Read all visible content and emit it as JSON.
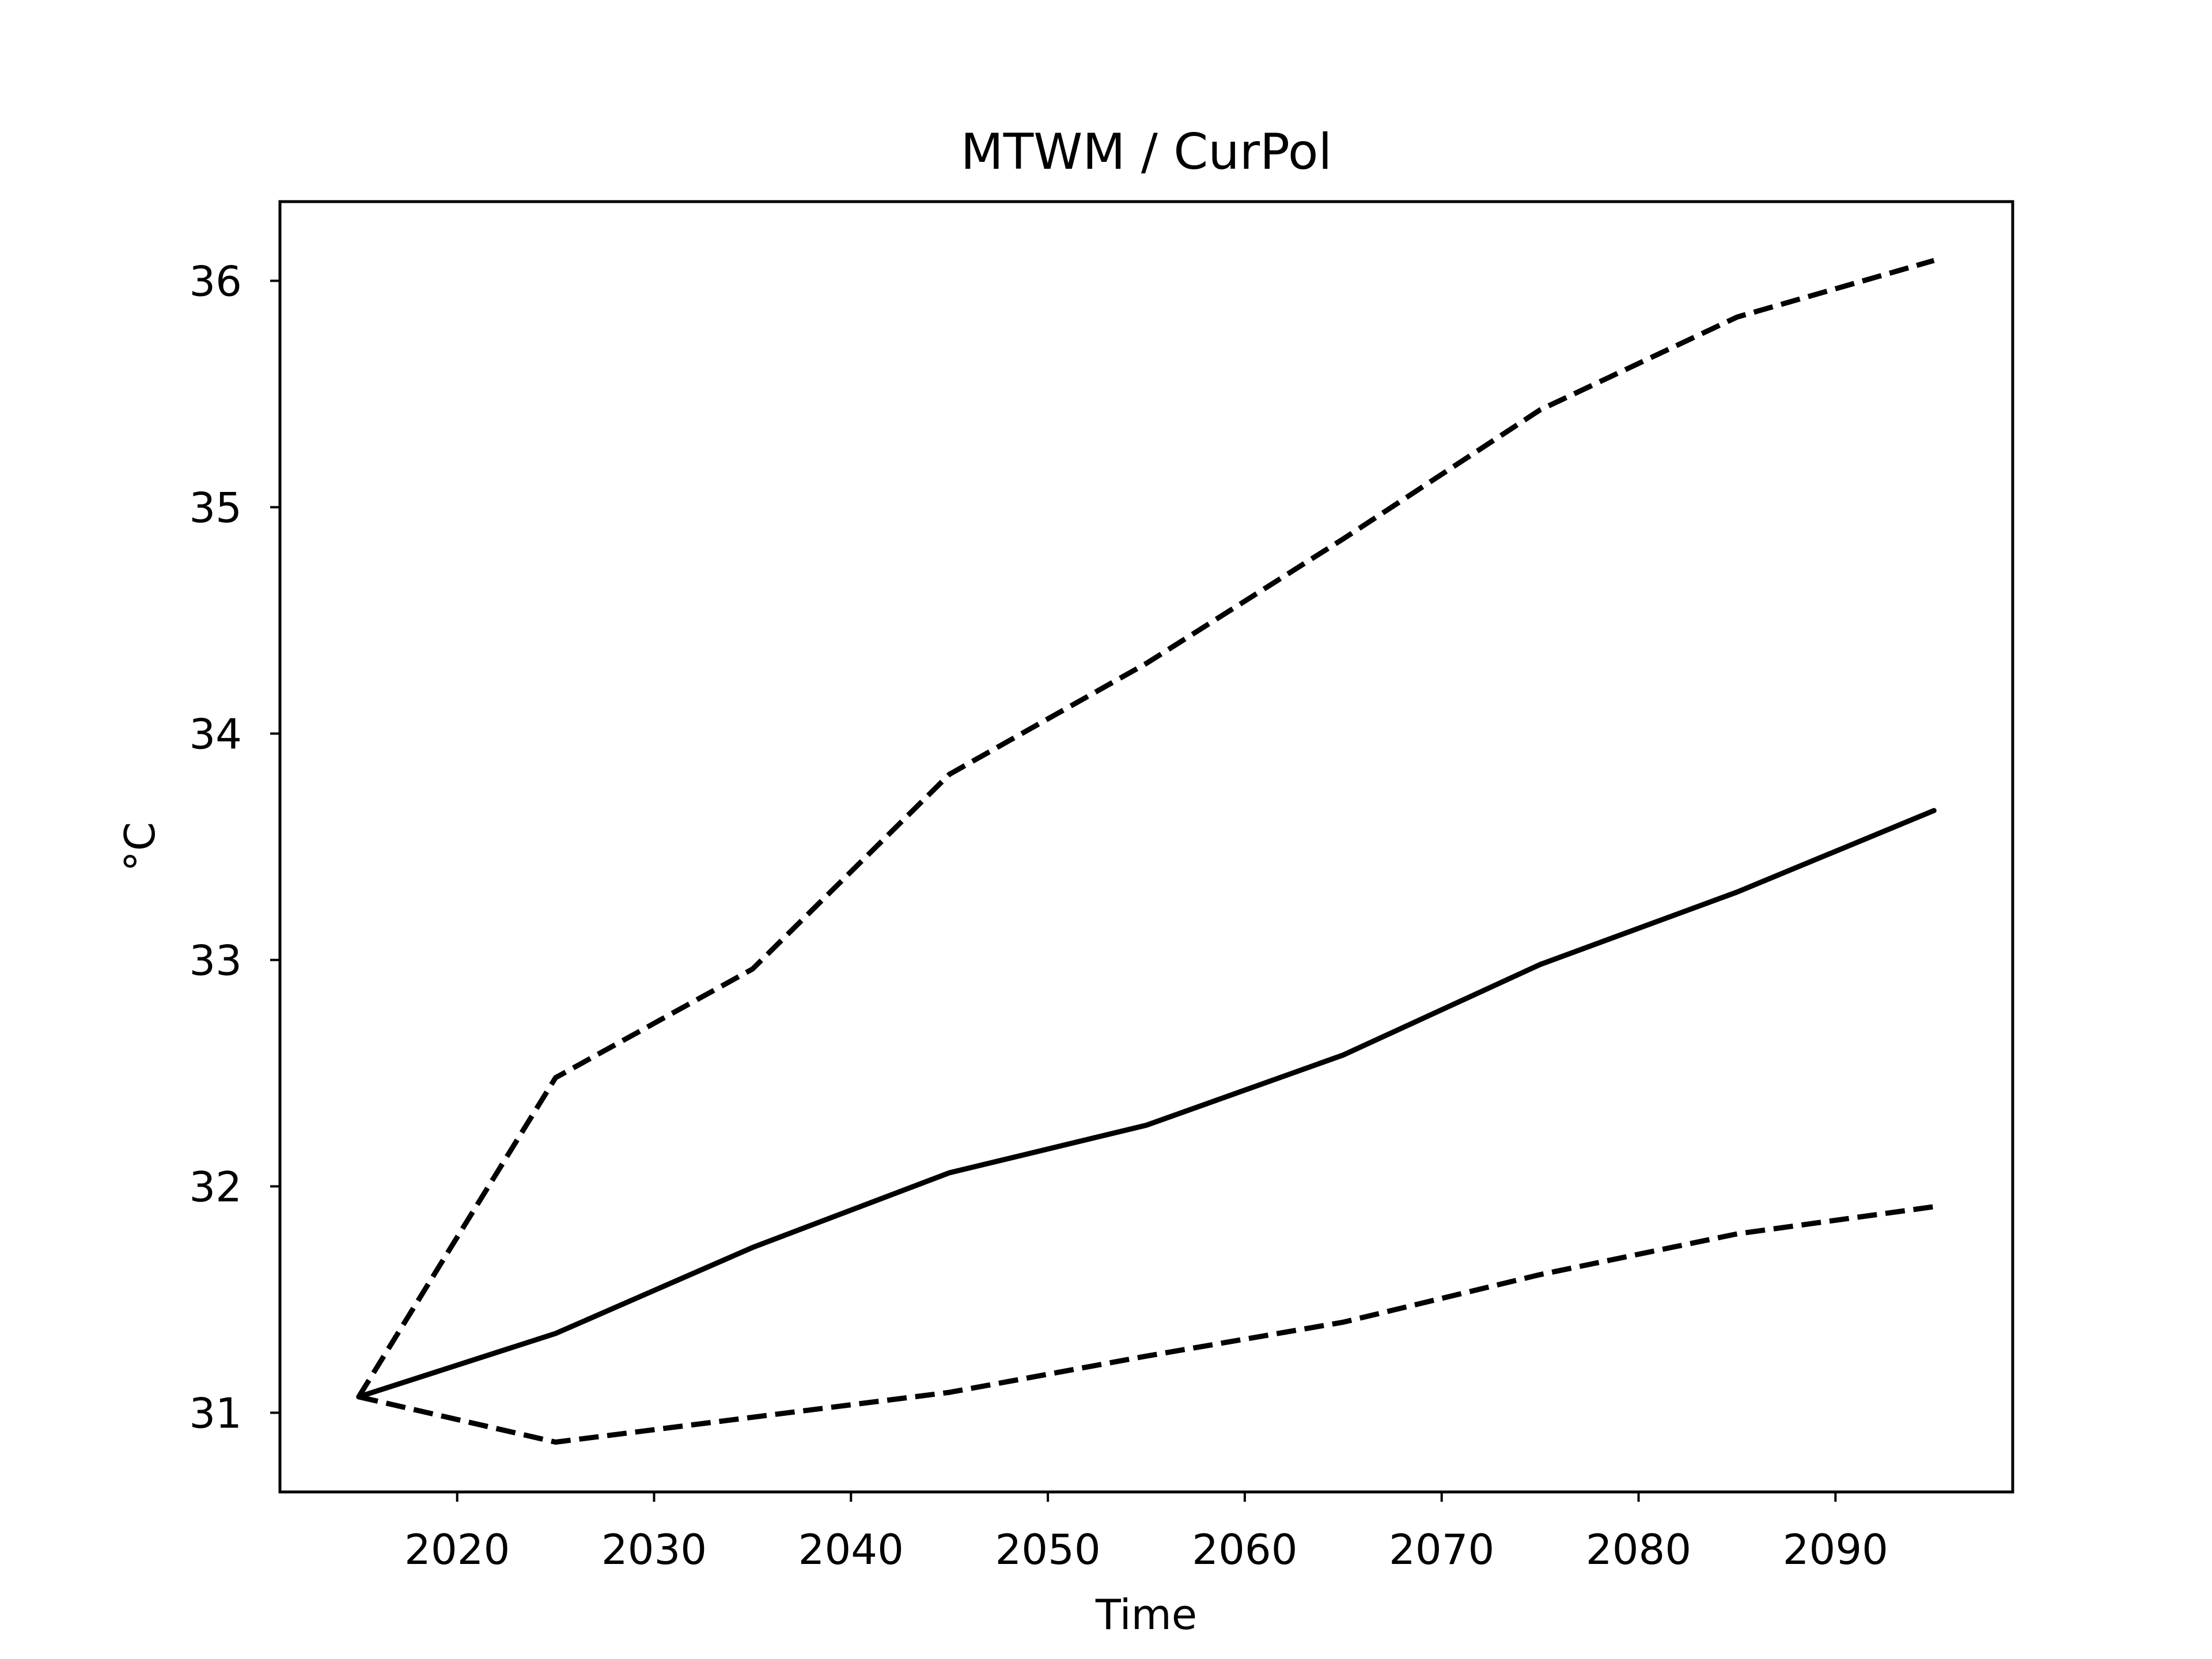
{
  "chart_data": {
    "type": "line",
    "title": "MTWM / CurPol",
    "xlabel": "Time",
    "ylabel": "°C",
    "xlim": [
      2011,
      2099
    ],
    "ylim": [
      30.65,
      36.35
    ],
    "xticks": [
      2020,
      2030,
      2040,
      2050,
      2060,
      2070,
      2080,
      2090
    ],
    "yticks": [
      31,
      32,
      33,
      34,
      35,
      36
    ],
    "grid": false,
    "x": [
      2015,
      2025,
      2035,
      2045,
      2055,
      2065,
      2075,
      2085,
      2095
    ],
    "series": [
      {
        "style": "dashed",
        "color": "#000000",
        "values": [
          31.07,
          32.48,
          32.96,
          33.82,
          34.31,
          34.86,
          35.43,
          35.84,
          36.09
        ]
      },
      {
        "style": "solid",
        "color": "#000000",
        "values": [
          31.07,
          31.35,
          31.73,
          32.06,
          32.27,
          32.58,
          32.98,
          33.3,
          33.66
        ]
      },
      {
        "style": "dashed",
        "color": "#000000",
        "values": [
          31.07,
          30.87,
          30.98,
          31.09,
          31.25,
          31.4,
          31.61,
          31.79,
          31.91
        ]
      }
    ]
  }
}
